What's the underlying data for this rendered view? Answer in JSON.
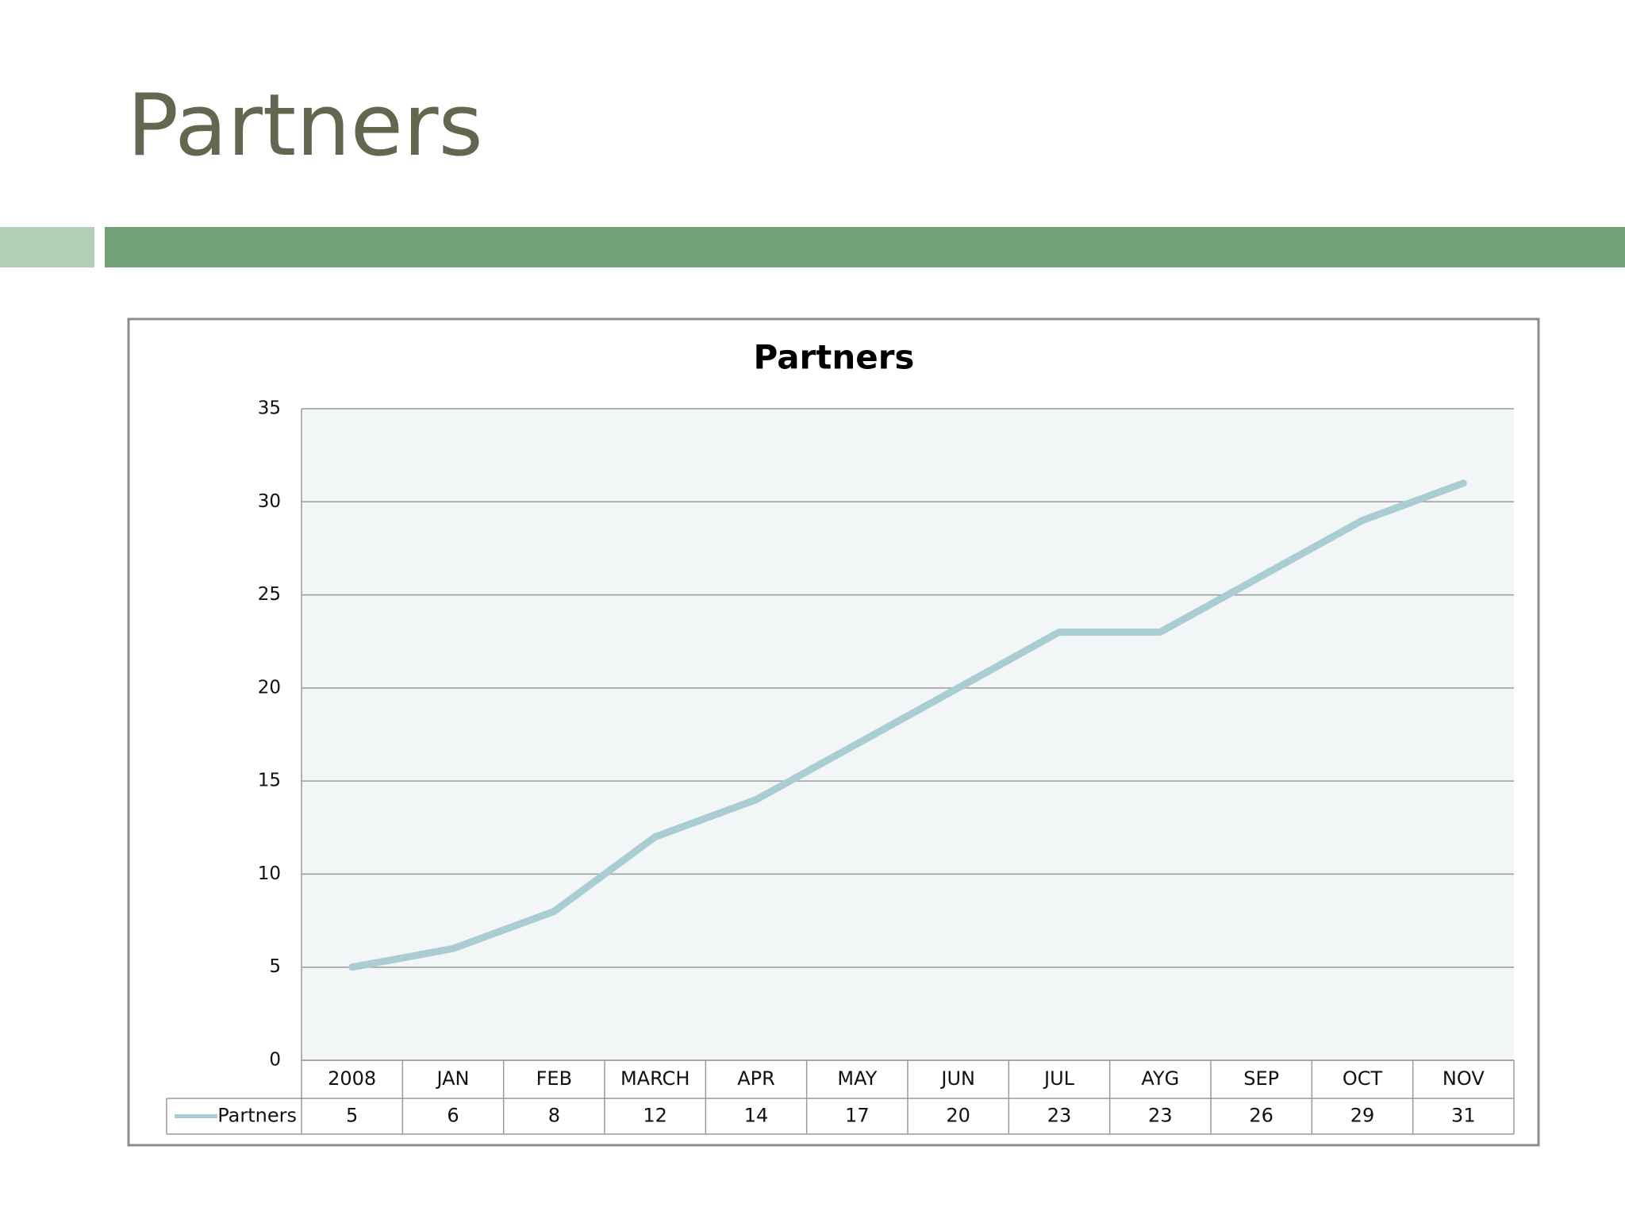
{
  "title": "Partners",
  "chart_data": {
    "type": "line",
    "title": "Partners",
    "categories": [
      "2008",
      "JAN",
      "FEB",
      "MARCH",
      "APR",
      "MAY",
      "JUN",
      "JUL",
      "AYG",
      "SEP",
      "OCT",
      "NOV"
    ],
    "series": [
      {
        "name": "Partners",
        "color": "#a9cdd3",
        "values": [
          5,
          6,
          8,
          12,
          14,
          17,
          20,
          23,
          23,
          26,
          29,
          31
        ]
      }
    ],
    "ylim": [
      0,
      35
    ],
    "yticks": [
      0,
      5,
      10,
      15,
      20,
      25,
      30,
      35
    ],
    "grid": true,
    "data_table": true
  }
}
